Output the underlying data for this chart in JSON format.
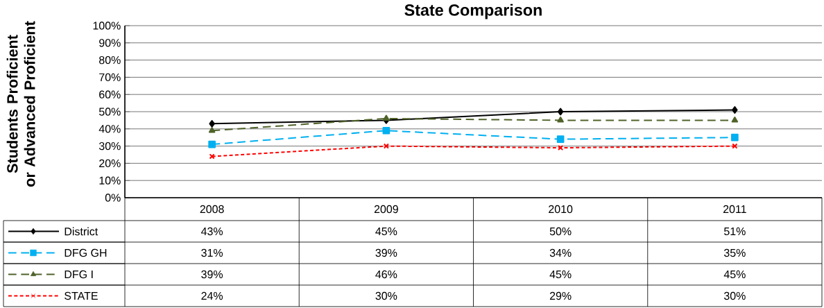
{
  "chart_data": {
    "type": "line",
    "title": "State Comparison",
    "ylabel": "Students Proficient or Advanced Proficient",
    "categories": [
      "2008",
      "2009",
      "2010",
      "2011"
    ],
    "ylim": [
      0,
      100
    ],
    "yticks": [
      {
        "value": 0,
        "label": "0%"
      },
      {
        "value": 10,
        "label": "10%"
      },
      {
        "value": 20,
        "label": "20%"
      },
      {
        "value": 30,
        "label": "30%"
      },
      {
        "value": 40,
        "label": "40%"
      },
      {
        "value": 50,
        "label": "50%"
      },
      {
        "value": 60,
        "label": "60%"
      },
      {
        "value": 70,
        "label": "70%"
      },
      {
        "value": 80,
        "label": "80%"
      },
      {
        "value": 90,
        "label": "90%"
      },
      {
        "value": 100,
        "label": "100%"
      }
    ],
    "grid": "y",
    "legend": "bottom",
    "series": [
      {
        "name": "District",
        "color": "#000000",
        "marker": "diamond",
        "line_style": "solid",
        "values": [
          43,
          45,
          50,
          51
        ],
        "value_labels": [
          "43%",
          "45%",
          "50%",
          "51%"
        ]
      },
      {
        "name": "DFG GH",
        "color": "#00b0f0",
        "marker": "square",
        "line_style": "dashed",
        "values": [
          31,
          39,
          34,
          35
        ],
        "value_labels": [
          "31%",
          "39%",
          "34%",
          "35%"
        ]
      },
      {
        "name": "DFG I",
        "color": "#4f6228",
        "marker": "triangle",
        "line_style": "dashed",
        "values": [
          39,
          46,
          45,
          45
        ],
        "value_labels": [
          "39%",
          "46%",
          "45%",
          "45%"
        ]
      },
      {
        "name": "STATE",
        "color": "#ff0000",
        "marker": "cross",
        "line_style": "dotted",
        "values": [
          24,
          30,
          29,
          30
        ],
        "value_labels": [
          "24%",
          "30%",
          "29%",
          "30%"
        ]
      }
    ]
  }
}
